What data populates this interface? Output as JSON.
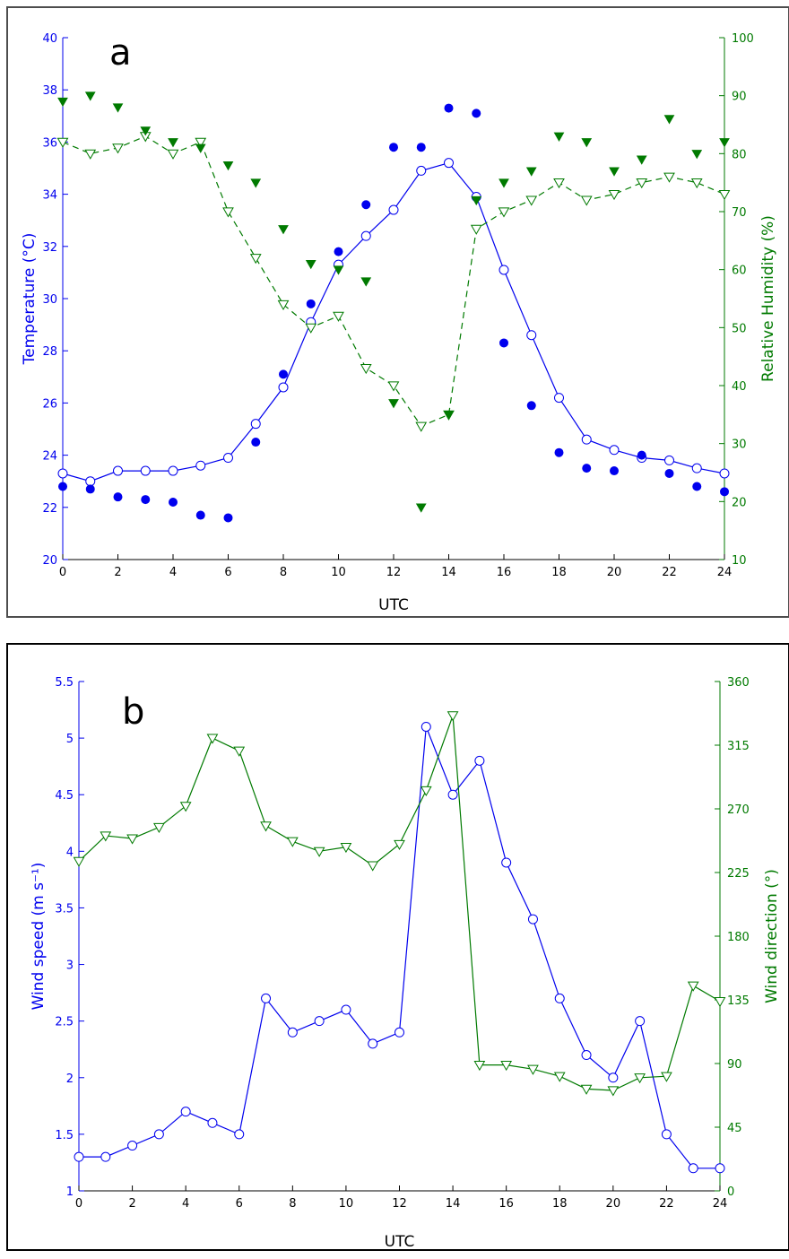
{
  "colors": {
    "temperature": "#0000ee",
    "humidity": "#007a00",
    "wind_speed": "#0000ee",
    "wind_direction": "#007a00"
  },
  "chart_data": [
    {
      "type": "line",
      "panel_label": "a",
      "xlabel": "UTC",
      "ylabel_left": "Temperature (°C)",
      "ylabel_right": "Relative Humidity (%)",
      "xlim": [
        0,
        24
      ],
      "ylim_left": [
        20,
        40
      ],
      "ylim_right": [
        10,
        100
      ],
      "x_ticks": [
        0,
        2,
        4,
        6,
        8,
        10,
        12,
        14,
        16,
        18,
        20,
        22,
        24
      ],
      "y_ticks_left": [
        20,
        22,
        24,
        26,
        28,
        30,
        32,
        34,
        36,
        38,
        40
      ],
      "y_ticks_right": [
        10,
        20,
        30,
        40,
        50,
        60,
        70,
        80,
        90,
        100
      ],
      "grid": false,
      "x": [
        0,
        1,
        2,
        3,
        4,
        5,
        6,
        7,
        8,
        9,
        10,
        11,
        12,
        13,
        14,
        15,
        16,
        17,
        18,
        19,
        20,
        21,
        22,
        23,
        24
      ],
      "series": [
        {
          "axis": "left",
          "style": "solid-line-open-circle",
          "values": [
            23.3,
            23.0,
            23.4,
            23.4,
            23.4,
            23.6,
            23.9,
            25.2,
            26.6,
            29.1,
            31.3,
            32.4,
            33.4,
            34.9,
            35.2,
            33.9,
            31.1,
            28.6,
            26.2,
            24.6,
            24.2,
            23.9,
            23.8,
            23.5,
            23.3
          ]
        },
        {
          "axis": "left",
          "style": "filled-circle",
          "values": [
            22.8,
            22.7,
            22.4,
            22.3,
            22.2,
            21.7,
            21.6,
            24.5,
            27.1,
            29.8,
            31.8,
            33.6,
            35.8,
            35.8,
            37.3,
            37.1,
            28.3,
            25.9,
            24.1,
            23.5,
            23.4,
            24.0,
            23.3,
            22.8,
            22.6
          ]
        },
        {
          "axis": "right",
          "style": "dashed-line-open-triangle",
          "values": [
            82,
            80,
            81,
            83,
            80,
            82,
            70,
            62,
            54,
            50,
            52,
            43,
            40,
            33,
            35,
            67,
            70,
            72,
            75,
            72,
            73,
            75,
            76,
            75,
            73
          ]
        },
        {
          "axis": "right",
          "style": "filled-triangle",
          "values": [
            89,
            90,
            88,
            84,
            82,
            81,
            78,
            75,
            67,
            61,
            60,
            58,
            37,
            19,
            35,
            72,
            75,
            77,
            83,
            82,
            77,
            79,
            86,
            80,
            82
          ]
        }
      ]
    },
    {
      "type": "line",
      "panel_label": "b",
      "xlabel": "UTC",
      "ylabel_left": "Wind speed (m s⁻¹)",
      "ylabel_right": "Wind direction (°)",
      "xlim": [
        0,
        24
      ],
      "ylim_left": [
        1,
        5.5
      ],
      "ylim_right": [
        0,
        360
      ],
      "x_ticks": [
        0,
        2,
        4,
        6,
        8,
        10,
        12,
        14,
        16,
        18,
        20,
        22,
        24
      ],
      "y_ticks_left": [
        1,
        1.5,
        2,
        2.5,
        3,
        3.5,
        4,
        4.5,
        5,
        5.5
      ],
      "y_ticks_right": [
        0,
        45,
        90,
        135,
        180,
        225,
        270,
        315,
        360
      ],
      "grid": false,
      "x": [
        0,
        1,
        2,
        3,
        4,
        5,
        6,
        7,
        8,
        9,
        10,
        11,
        12,
        13,
        14,
        15,
        16,
        17,
        18,
        19,
        20,
        21,
        22,
        23,
        24
      ],
      "series": [
        {
          "axis": "left",
          "style": "solid-line-open-circle",
          "values": [
            1.3,
            1.3,
            1.4,
            1.5,
            1.7,
            1.6,
            1.5,
            2.7,
            2.4,
            2.5,
            2.6,
            2.3,
            2.4,
            5.1,
            4.5,
            4.8,
            3.9,
            3.4,
            2.7,
            2.2,
            2.0,
            2.5,
            1.5,
            1.2,
            1.2
          ]
        },
        {
          "axis": "right",
          "style": "solid-line-open-triangle",
          "values": [
            233,
            251,
            249,
            257,
            272,
            320,
            311,
            258,
            247,
            240,
            243,
            230,
            245,
            283,
            336,
            89,
            89,
            86,
            81,
            72,
            71,
            80,
            81,
            145,
            134
          ]
        }
      ]
    }
  ]
}
